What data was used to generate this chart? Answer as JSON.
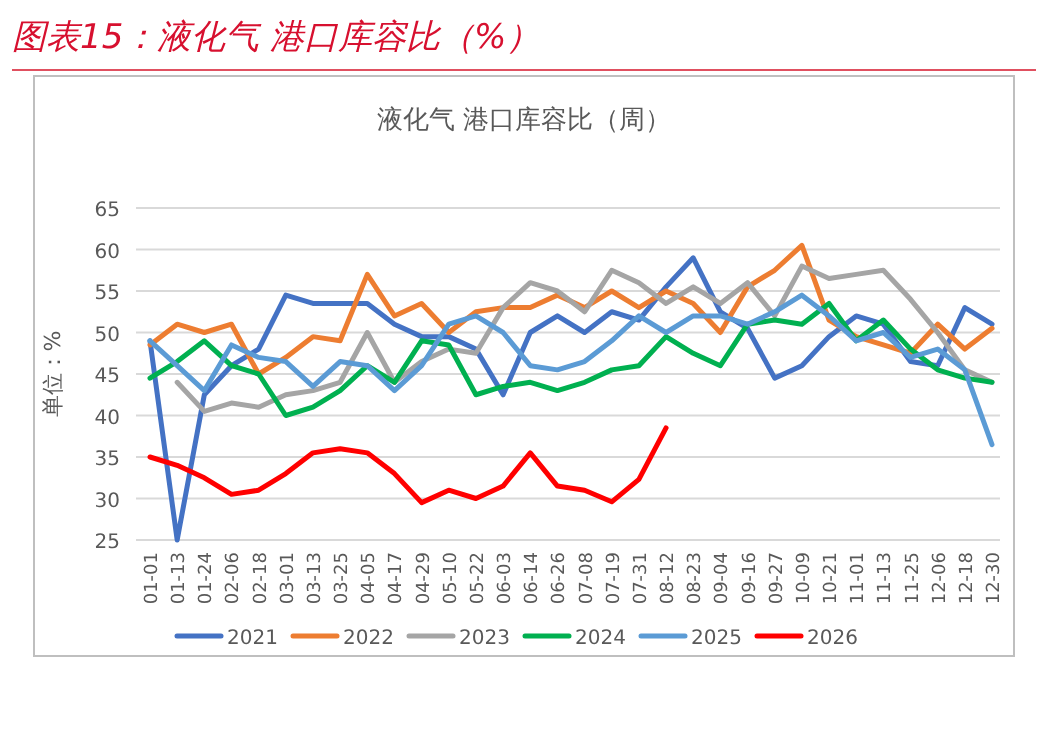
{
  "chart_data": {
    "type": "line",
    "title": "图表15：液化气 港口库容比（%）",
    "subtitle": "液化气 港口库容比（周）",
    "ylabel": "单位：%",
    "categories": [
      "01-01",
      "01-13",
      "01-24",
      "02-06",
      "02-18",
      "03-01",
      "03-13",
      "03-25",
      "04-05",
      "04-17",
      "04-29",
      "05-10",
      "05-22",
      "06-03",
      "06-14",
      "06-26",
      "07-08",
      "07-19",
      "07-31",
      "08-12",
      "08-23",
      "09-04",
      "09-16",
      "09-27",
      "10-09",
      "10-21",
      "11-01",
      "11-13",
      "11-25",
      "12-06",
      "12-18",
      "12-30"
    ],
    "series": [
      {
        "name": "2021",
        "color": "#4472c4",
        "values": [
          49,
          25,
          42.5,
          46,
          48,
          54.5,
          53.5,
          53.5,
          53.5,
          51,
          49.5,
          49.5,
          48,
          42.5,
          50,
          52,
          50,
          52.5,
          51.5,
          55.5,
          59,
          52.5,
          50.5,
          44.5,
          46,
          49.5,
          52,
          51,
          46.5,
          46,
          53,
          51
        ]
      },
      {
        "name": "2022",
        "color": "#ed7d31",
        "values": [
          48.5,
          51,
          50,
          51,
          45,
          47,
          49.5,
          49,
          57,
          52,
          53.5,
          50,
          52.5,
          53,
          53,
          54.5,
          53,
          55,
          53,
          55,
          53.5,
          50,
          55.5,
          57.5,
          60.5,
          51.5,
          49.5,
          48.5,
          47.5,
          51,
          48,
          50.5
        ]
      },
      {
        "name": "2023",
        "color": "#a5a5a5",
        "values": [
          null,
          44,
          40.5,
          41.5,
          41,
          42.5,
          43,
          44,
          50,
          44,
          46.5,
          48,
          47.5,
          53,
          56,
          55,
          52.5,
          57.5,
          56,
          53.5,
          55.5,
          53.5,
          56,
          52,
          58,
          56.5,
          57,
          57.5,
          54,
          50,
          45.5,
          44
        ]
      },
      {
        "name": "2024",
        "color": "#00b050",
        "values": [
          44.5,
          46.5,
          49,
          46,
          45,
          40,
          41,
          43,
          46,
          44,
          49,
          48.5,
          42.5,
          43.5,
          44,
          43,
          44,
          45.5,
          46,
          49.5,
          47.5,
          46,
          51,
          51.5,
          51,
          53.5,
          49,
          51.5,
          48,
          45.5,
          44.5,
          44
        ]
      },
      {
        "name": "2025",
        "color": "#5b9bd5",
        "values": [
          49,
          46,
          43,
          48.5,
          47,
          46.5,
          43.5,
          46.5,
          46,
          43,
          46,
          51,
          52,
          50,
          46,
          45.5,
          46.5,
          49,
          52,
          50,
          52,
          52,
          51,
          52.5,
          54.5,
          52,
          49,
          50,
          47,
          48,
          45.5,
          36.5
        ]
      },
      {
        "name": "2026",
        "color": "#ff0000",
        "values": [
          35,
          34,
          32.5,
          30.5,
          31,
          33,
          35.5,
          36,
          35.5,
          33,
          29.5,
          31,
          30,
          31.5,
          35.5,
          31.5,
          31,
          29.6,
          32.3,
          38.5,
          null,
          null,
          null,
          null,
          null,
          null,
          null,
          null,
          null,
          null,
          null,
          null
        ]
      }
    ],
    "ylim": [
      25,
      65
    ],
    "yticks": [
      25,
      30,
      35,
      40,
      45,
      50,
      55,
      60,
      65
    ],
    "grid": "y",
    "legend": "bottom"
  }
}
